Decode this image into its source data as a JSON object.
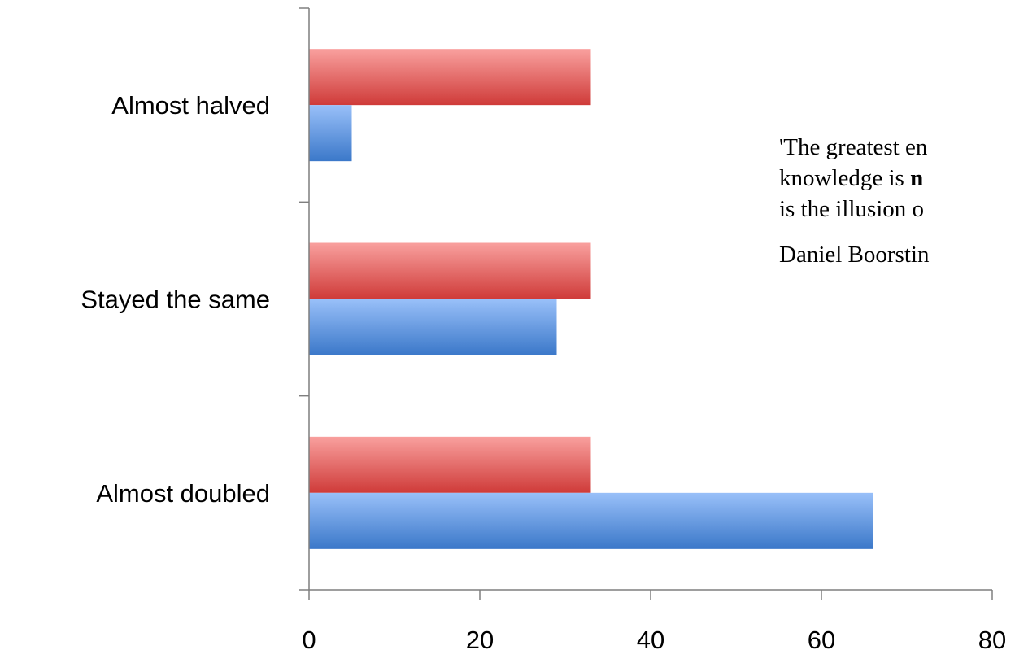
{
  "chart_data": {
    "type": "bar",
    "orientation": "horizontal",
    "categories": [
      "Almost halved",
      "Stayed the same",
      "Almost doubled"
    ],
    "series": [
      {
        "values": [
          33,
          33,
          33
        ],
        "color": "#d84a48"
      },
      {
        "values": [
          5,
          29,
          66
        ],
        "color": "#4a86d0"
      }
    ],
    "x_ticks": [
      "0",
      "20",
      "40",
      "60",
      "80"
    ],
    "xlim": [
      0,
      80
    ],
    "grid": false,
    "legend": "none"
  },
  "quote": {
    "line1": "'The greatest en",
    "line2_pre": "knowledge is ",
    "line2_bold": "n",
    "line3": "is the illusion o",
    "author": "Daniel Boorstin"
  }
}
